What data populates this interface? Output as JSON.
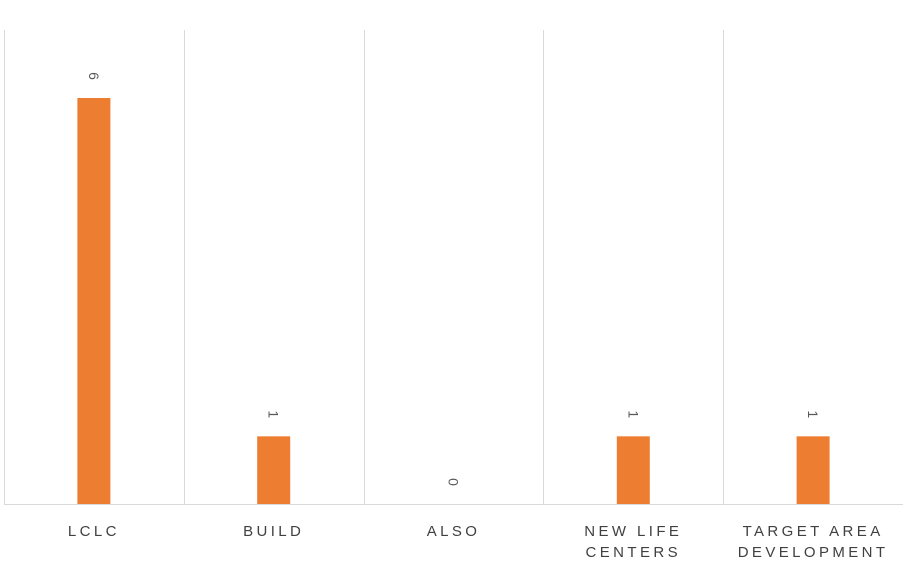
{
  "chart_data": {
    "type": "bar",
    "categories": [
      "LCLC",
      "BUILD",
      "ALSO",
      "NEW LIFE\nCENTERS",
      "TARGET AREA\nDEVELOPMENT"
    ],
    "values": [
      6,
      1,
      0,
      1,
      1
    ],
    "data_labels": [
      "6",
      "1",
      "0",
      "1",
      "1"
    ],
    "title": "",
    "xlabel": "",
    "ylabel": "",
    "ylim": [
      0,
      7
    ],
    "grid": "vertical category separators",
    "legend": "none",
    "bar_color": "#ED7D31",
    "gridline_color": "#D9D9D9",
    "label_color": "#595959"
  }
}
